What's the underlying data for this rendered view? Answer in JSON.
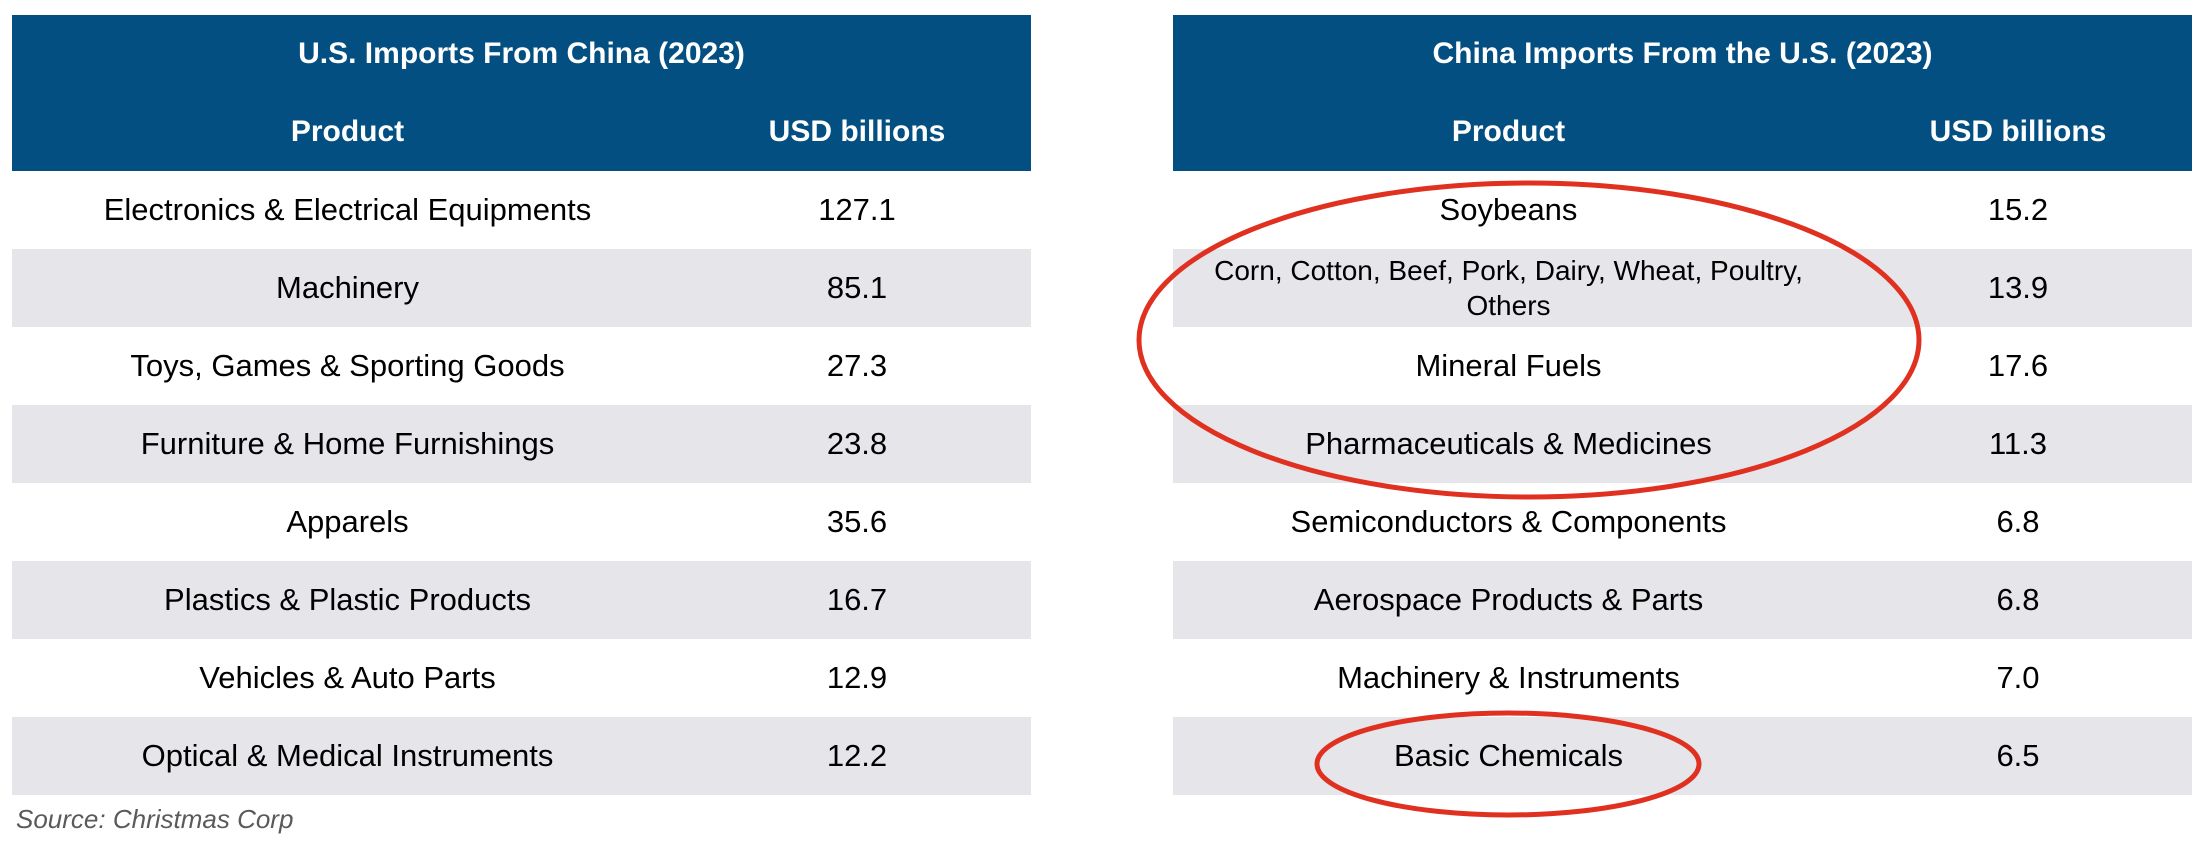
{
  "chart_data": [
    {
      "type": "table",
      "title": "U.S. Imports From China (2023)",
      "columns": [
        "Product",
        "USD billions"
      ],
      "rows": [
        {
          "product": "Electronics & Electrical Equipments",
          "value": "127.1"
        },
        {
          "product": "Machinery",
          "value": "85.1"
        },
        {
          "product": "Toys, Games & Sporting Goods",
          "value": "27.3"
        },
        {
          "product": "Furniture & Home Furnishings",
          "value": "23.8"
        },
        {
          "product": "Apparels",
          "value": "35.6"
        },
        {
          "product": "Plastics & Plastic Products",
          "value": "16.7"
        },
        {
          "product": "Vehicles & Auto Parts",
          "value": "12.9"
        },
        {
          "product": "Optical & Medical Instruments",
          "value": "12.2"
        }
      ]
    },
    {
      "type": "table",
      "title": "China Imports From the U.S. (2023)",
      "columns": [
        "Product",
        "USD billions"
      ],
      "rows": [
        {
          "product": "Soybeans",
          "value": "15.2"
        },
        {
          "product": "Corn, Cotton, Beef, Pork, Dairy, Wheat, Poultry, Others",
          "value": "13.9"
        },
        {
          "product": "Mineral Fuels",
          "value": "17.6"
        },
        {
          "product": "Pharmaceuticals & Medicines",
          "value": "11.3"
        },
        {
          "product": "Semiconductors & Components",
          "value": "6.8"
        },
        {
          "product": "Aerospace Products & Parts",
          "value": "6.8"
        },
        {
          "product": "Machinery & Instruments",
          "value": "7.0"
        },
        {
          "product": "Basic Chemicals",
          "value": "6.5"
        }
      ]
    }
  ],
  "source": "Source: Christmas Corp",
  "colors": {
    "header_bg": "#034f82",
    "header_text": "#ffffff",
    "alt_row_bg": "#e5e5ea",
    "highlight_ellipse": "#e03020"
  }
}
